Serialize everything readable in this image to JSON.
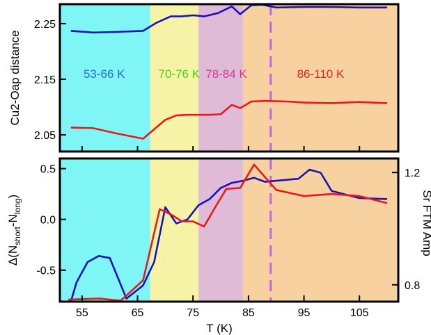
{
  "chart_data": [
    {
      "type": "line",
      "panel": "top",
      "xlim": [
        51,
        112
      ],
      "ylim": [
        2.02,
        2.285
      ],
      "ylabel": "Cu2-Oap distance",
      "yticks": [
        "2.05",
        "2.15",
        "2.25"
      ],
      "ytick_values": [
        2.05,
        2.15,
        2.25
      ],
      "regions": [
        {
          "label": "53-66 K",
          "x0": 51,
          "x1": 67.3,
          "fill": "#7ff5f6",
          "text_color": "#2a6bd8",
          "text_x": 59
        },
        {
          "label": "70-76 K",
          "x0": 67.3,
          "x1": 76,
          "fill": "#f6f3a6",
          "text_color": "#44d418",
          "text_x": 72.5
        },
        {
          "label": "78-84 K",
          "x0": 76,
          "x1": 84,
          "fill": "#dfbbd7",
          "text_color": "#e2329a",
          "text_x": 81
        },
        {
          "label": "86-110 K",
          "x0": 84,
          "x1": 112,
          "fill": "#f8d1a1",
          "text_color": "#e8211c",
          "text_x": 98
        }
      ],
      "region_label_y": 2.16,
      "vline": {
        "x": 89,
        "color": "#c066e0"
      },
      "series": [
        {
          "color": "#1a12b8",
          "x": [
            53,
            57,
            61,
            66,
            68.5,
            71,
            73,
            75,
            77,
            79.5,
            82,
            83.5,
            85.5,
            87.5,
            90,
            95,
            100,
            105,
            110
          ],
          "y": [
            2.237,
            2.234,
            2.235,
            2.237,
            2.252,
            2.263,
            2.263,
            2.265,
            2.263,
            2.269,
            2.281,
            2.267,
            2.283,
            2.284,
            2.279,
            2.28,
            2.28,
            2.279,
            2.279
          ]
        },
        {
          "color": "#e8191c",
          "x": [
            53,
            57,
            61,
            66,
            68,
            70,
            72,
            74,
            76,
            78,
            80,
            82,
            83.5,
            85.5,
            88,
            92,
            95,
            100,
            105,
            110
          ],
          "y": [
            2.063,
            2.062,
            2.053,
            2.043,
            2.06,
            2.077,
            2.085,
            2.086,
            2.086,
            2.086,
            2.087,
            2.104,
            2.098,
            2.11,
            2.111,
            2.11,
            2.108,
            2.107,
            2.109,
            2.107
          ]
        }
      ]
    },
    {
      "type": "line",
      "panel": "bottom",
      "xlim": [
        51,
        112
      ],
      "ylim": [
        -0.81,
        0.6
      ],
      "ylabel_parts": [
        "Δ(N",
        "short",
        "-N",
        "long",
        ")"
      ],
      "yticks": [
        "-0.5",
        "0.0",
        "0.5"
      ],
      "ytick_values": [
        -0.5,
        0.0,
        0.5
      ],
      "xlabel": "T (K)",
      "xticks": [
        "55",
        "65",
        "75",
        "85",
        "95",
        "105"
      ],
      "xtick_values": [
        55,
        65,
        75,
        85,
        95,
        105
      ],
      "y2label": "Sr FTM Amp",
      "y2lim": [
        0.74,
        1.25
      ],
      "y2ticks": [
        "0.8",
        "1.2"
      ],
      "y2tick_values": [
        0.8,
        1.2
      ],
      "regions": [
        {
          "x0": 51,
          "x1": 67.3,
          "fill": "#7ff5f6"
        },
        {
          "x0": 67.3,
          "x1": 76,
          "fill": "#f6f3a6"
        },
        {
          "x0": 76,
          "x1": 84,
          "fill": "#dfbbd7"
        },
        {
          "x0": 84,
          "x1": 112,
          "fill": "#f8d1a1"
        }
      ],
      "vline": {
        "x": 89,
        "color": "#c066e0"
      },
      "series": [
        {
          "color": "#1a12b8",
          "axis": "left",
          "x": [
            52.5,
            54,
            56,
            58,
            60,
            63,
            66,
            68,
            70,
            72,
            74,
            76,
            78,
            80,
            82,
            84,
            86,
            88,
            90,
            94,
            96,
            98,
            100,
            105,
            110
          ],
          "y": [
            -0.9,
            -0.62,
            -0.42,
            -0.36,
            -0.38,
            -0.78,
            -0.65,
            -0.42,
            0.12,
            -0.04,
            0.0,
            0.14,
            0.2,
            0.31,
            0.36,
            0.38,
            0.41,
            0.37,
            0.38,
            0.4,
            0.49,
            0.46,
            0.28,
            0.21,
            0.2
          ]
        },
        {
          "color": "#e8191c",
          "axis": "left",
          "x": [
            52.5,
            58,
            62,
            66,
            69,
            71,
            73,
            75,
            77,
            79,
            81,
            83.5,
            86,
            90,
            95,
            100,
            105,
            110
          ],
          "y": [
            -0.79,
            -0.78,
            -0.8,
            -0.6,
            0.1,
            0.05,
            -0.02,
            -0.02,
            -0.07,
            0.12,
            0.3,
            0.31,
            0.54,
            0.29,
            0.23,
            0.25,
            0.23,
            0.16
          ]
        }
      ]
    }
  ]
}
